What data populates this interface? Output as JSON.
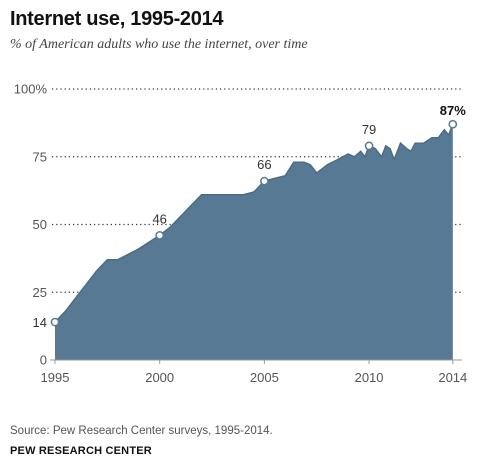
{
  "title": "Internet use, 1995-2014",
  "subtitle": "% of American adults who use the internet, over time",
  "source": "Source: Pew Research Center surveys, 1995-2014.",
  "brand": "PEW RESEARCH CENTER",
  "colors": {
    "area": "#577993",
    "area_edge": "#4a6d87",
    "grid": "#333333",
    "marker_fill": "#ffffff",
    "marker_stroke": "#577993"
  },
  "chart_data": {
    "type": "area",
    "title": "Internet use, 1995-2014",
    "subtitle": "% of American adults who use the internet, over time",
    "xlabel": "",
    "ylabel": "",
    "xlim": [
      1995,
      2014.2
    ],
    "ylim": [
      0,
      100
    ],
    "grid": true,
    "y_ticks": [
      {
        "value": 0,
        "label": "0"
      },
      {
        "value": 25,
        "label": "25"
      },
      {
        "value": 50,
        "label": "50"
      },
      {
        "value": 75,
        "label": "75"
      },
      {
        "value": 100,
        "label": "100%"
      }
    ],
    "x_ticks": [
      {
        "value": 1995,
        "label": "1995"
      },
      {
        "value": 2000,
        "label": "2000"
      },
      {
        "value": 2005,
        "label": "2005"
      },
      {
        "value": 2010,
        "label": "2010"
      },
      {
        "value": 2014,
        "label": "2014"
      }
    ],
    "series": [
      {
        "points": [
          [
            1995.0,
            14
          ],
          [
            1995.5,
            18
          ],
          [
            1996.0,
            23
          ],
          [
            1997.0,
            33
          ],
          [
            1997.5,
            37
          ],
          [
            1998.0,
            37
          ],
          [
            1998.5,
            39
          ],
          [
            1999.0,
            41
          ],
          [
            2000.0,
            46
          ],
          [
            2000.5,
            49
          ],
          [
            2001.0,
            53
          ],
          [
            2001.5,
            57
          ],
          [
            2002.0,
            61
          ],
          [
            2003.0,
            61
          ],
          [
            2004.0,
            61
          ],
          [
            2004.5,
            62
          ],
          [
            2005.0,
            66
          ],
          [
            2005.5,
            67
          ],
          [
            2006.0,
            68
          ],
          [
            2006.4,
            73
          ],
          [
            2006.9,
            73
          ],
          [
            2007.2,
            72
          ],
          [
            2007.5,
            69
          ],
          [
            2008.0,
            72
          ],
          [
            2008.5,
            74
          ],
          [
            2009.0,
            76
          ],
          [
            2009.3,
            75
          ],
          [
            2009.6,
            77
          ],
          [
            2009.8,
            75
          ],
          [
            2010.0,
            79
          ],
          [
            2010.3,
            78
          ],
          [
            2010.6,
            75
          ],
          [
            2010.8,
            79
          ],
          [
            2011.0,
            78
          ],
          [
            2011.2,
            74
          ],
          [
            2011.5,
            80
          ],
          [
            2011.8,
            78
          ],
          [
            2012.0,
            77
          ],
          [
            2012.2,
            80
          ],
          [
            2012.6,
            80
          ],
          [
            2013.0,
            82
          ],
          [
            2013.3,
            82
          ],
          [
            2013.6,
            85
          ],
          [
            2013.8,
            83
          ],
          [
            2014.0,
            87
          ]
        ]
      }
    ],
    "labeled_points": [
      {
        "x": 1995,
        "y": 14,
        "label": "14"
      },
      {
        "x": 2000,
        "y": 46,
        "label": "46"
      },
      {
        "x": 2005,
        "y": 66,
        "label": "66"
      },
      {
        "x": 2010,
        "y": 79,
        "label": "79"
      },
      {
        "x": 2014,
        "y": 87,
        "label": "87%"
      }
    ]
  }
}
